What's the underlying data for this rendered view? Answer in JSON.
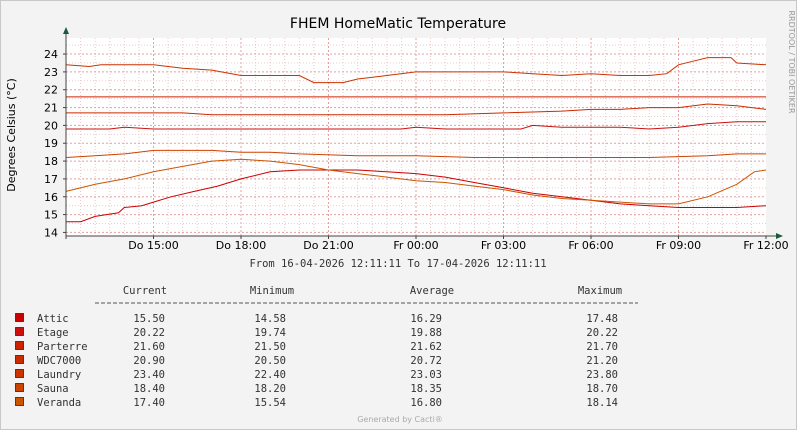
{
  "chart_data": {
    "type": "line",
    "title": "FHEM HomeMatic Temperature",
    "ylabel": "Degrees Celsius (°C)",
    "vertical_credit": "RRDTOOL / TOBI OETIKER",
    "generated_by": "Generated by Cacti®",
    "range_text": "From 16-04-2026 12:11:11 To 17-04-2026 12:11:11",
    "ylim": [
      13.8,
      24.9
    ],
    "xlim": [
      0,
      24
    ],
    "grid": true,
    "y_ticks": [
      14,
      15,
      16,
      17,
      18,
      19,
      20,
      21,
      22,
      23,
      24
    ],
    "x_ticks": [
      {
        "x": 3,
        "label": "Do 15:00"
      },
      {
        "x": 6,
        "label": "Do 18:00"
      },
      {
        "x": 9,
        "label": "Do 21:00"
      },
      {
        "x": 12,
        "label": "Fr 00:00"
      },
      {
        "x": 15,
        "label": "Fr 03:00"
      },
      {
        "x": 18,
        "label": "Fr 06:00"
      },
      {
        "x": 21,
        "label": "Fr 09:00"
      },
      {
        "x": 24,
        "label": "Fr 12:00"
      }
    ],
    "legend_headers": {
      "current": "Current",
      "minimum": "Minimum",
      "average": "Average",
      "maximum": "Maximum"
    },
    "legend_placement": "bottom",
    "series": [
      {
        "name": "Attic",
        "color": "#cc0000",
        "current": "15.50",
        "minimum": "14.58",
        "average": "16.29",
        "maximum": "17.48",
        "points": [
          [
            0,
            14.6
          ],
          [
            0.5,
            14.6
          ],
          [
            1,
            14.9
          ],
          [
            1.8,
            15.1
          ],
          [
            2,
            15.4
          ],
          [
            2.6,
            15.5
          ],
          [
            3,
            15.7
          ],
          [
            3.6,
            16.0
          ],
          [
            4.4,
            16.3
          ],
          [
            5.2,
            16.6
          ],
          [
            6,
            17.0
          ],
          [
            7,
            17.4
          ],
          [
            8,
            17.5
          ],
          [
            9,
            17.5
          ],
          [
            10,
            17.5
          ],
          [
            11,
            17.4
          ],
          [
            12,
            17.3
          ],
          [
            13,
            17.1
          ],
          [
            14,
            16.8
          ],
          [
            15,
            16.5
          ],
          [
            16,
            16.2
          ],
          [
            17,
            16.0
          ],
          [
            18,
            15.8
          ],
          [
            19,
            15.6
          ],
          [
            20,
            15.5
          ],
          [
            21,
            15.4
          ],
          [
            22,
            15.4
          ],
          [
            23,
            15.4
          ],
          [
            24,
            15.5
          ]
        ]
      },
      {
        "name": "Etage",
        "color": "#cc1010",
        "current": "20.22",
        "minimum": "19.74",
        "average": "19.88",
        "maximum": "20.22",
        "points": [
          [
            0,
            19.8
          ],
          [
            1.5,
            19.8
          ],
          [
            2,
            19.9
          ],
          [
            3,
            19.8
          ],
          [
            4,
            19.8
          ],
          [
            6,
            19.8
          ],
          [
            8,
            19.8
          ],
          [
            10,
            19.8
          ],
          [
            11.5,
            19.8
          ],
          [
            12,
            19.9
          ],
          [
            13,
            19.8
          ],
          [
            14,
            19.8
          ],
          [
            15.6,
            19.8
          ],
          [
            16,
            20.0
          ],
          [
            17,
            19.9
          ],
          [
            18,
            19.9
          ],
          [
            19,
            19.9
          ],
          [
            20,
            19.8
          ],
          [
            21,
            19.9
          ],
          [
            22,
            20.1
          ],
          [
            23,
            20.2
          ],
          [
            24,
            20.2
          ]
        ]
      },
      {
        "name": "Parterre",
        "color": "#cc2200",
        "current": "21.60",
        "minimum": "21.50",
        "average": "21.62",
        "maximum": "21.70",
        "points": [
          [
            0,
            21.6
          ],
          [
            3,
            21.6
          ],
          [
            6,
            21.6
          ],
          [
            9,
            21.6
          ],
          [
            12,
            21.6
          ],
          [
            15,
            21.6
          ],
          [
            18,
            21.6
          ],
          [
            21,
            21.6
          ],
          [
            24,
            21.6
          ]
        ]
      },
      {
        "name": "WDC7000",
        "color": "#cc2a00",
        "current": "20.90",
        "minimum": "20.50",
        "average": "20.72",
        "maximum": "21.20",
        "points": [
          [
            0,
            20.7
          ],
          [
            2,
            20.7
          ],
          [
            4,
            20.7
          ],
          [
            5,
            20.6
          ],
          [
            7,
            20.6
          ],
          [
            9,
            20.6
          ],
          [
            11,
            20.6
          ],
          [
            13,
            20.6
          ],
          [
            15,
            20.7
          ],
          [
            17,
            20.8
          ],
          [
            18,
            20.9
          ],
          [
            19,
            20.9
          ],
          [
            20,
            21.0
          ],
          [
            21,
            21.0
          ],
          [
            22,
            21.2
          ],
          [
            23,
            21.1
          ],
          [
            24,
            20.9
          ]
        ]
      },
      {
        "name": "Laundry",
        "color": "#cc3300",
        "current": "23.40",
        "minimum": "22.40",
        "average": "23.03",
        "maximum": "23.80",
        "points": [
          [
            0,
            23.4
          ],
          [
            0.8,
            23.3
          ],
          [
            1.2,
            23.4
          ],
          [
            3,
            23.4
          ],
          [
            4,
            23.2
          ],
          [
            5,
            23.1
          ],
          [
            6,
            22.8
          ],
          [
            7,
            22.8
          ],
          [
            8,
            22.8
          ],
          [
            8.5,
            22.4
          ],
          [
            9.5,
            22.4
          ],
          [
            10,
            22.6
          ],
          [
            11,
            22.8
          ],
          [
            12,
            23.0
          ],
          [
            13,
            23.0
          ],
          [
            14,
            23.0
          ],
          [
            15,
            23.0
          ],
          [
            16,
            22.9
          ],
          [
            17,
            22.8
          ],
          [
            18,
            22.9
          ],
          [
            19,
            22.8
          ],
          [
            20,
            22.8
          ],
          [
            20.6,
            22.9
          ],
          [
            21,
            23.4
          ],
          [
            21.5,
            23.6
          ],
          [
            22,
            23.8
          ],
          [
            22.8,
            23.8
          ],
          [
            23,
            23.5
          ],
          [
            24,
            23.4
          ]
        ]
      },
      {
        "name": "Sauna",
        "color": "#cc4400",
        "current": "18.40",
        "minimum": "18.20",
        "average": "18.35",
        "maximum": "18.70",
        "points": [
          [
            0,
            18.2
          ],
          [
            1,
            18.3
          ],
          [
            2,
            18.4
          ],
          [
            3,
            18.6
          ],
          [
            5,
            18.6
          ],
          [
            6,
            18.5
          ],
          [
            7,
            18.5
          ],
          [
            8,
            18.4
          ],
          [
            10,
            18.3
          ],
          [
            12,
            18.3
          ],
          [
            14,
            18.2
          ],
          [
            16,
            18.2
          ],
          [
            18,
            18.2
          ],
          [
            20,
            18.2
          ],
          [
            22,
            18.3
          ],
          [
            23,
            18.4
          ],
          [
            24,
            18.4
          ]
        ]
      },
      {
        "name": "Veranda",
        "color": "#cc5500",
        "current": "17.40",
        "minimum": "15.54",
        "average": "16.80",
        "maximum": "18.14",
        "points": [
          [
            0,
            16.3
          ],
          [
            1,
            16.7
          ],
          [
            2,
            17.0
          ],
          [
            3,
            17.4
          ],
          [
            4,
            17.7
          ],
          [
            5,
            18.0
          ],
          [
            6,
            18.1
          ],
          [
            7,
            18.0
          ],
          [
            8,
            17.8
          ],
          [
            9,
            17.5
          ],
          [
            10,
            17.3
          ],
          [
            11,
            17.1
          ],
          [
            12,
            16.9
          ],
          [
            13,
            16.8
          ],
          [
            14,
            16.6
          ],
          [
            15,
            16.4
          ],
          [
            16,
            16.1
          ],
          [
            17,
            15.9
          ],
          [
            18,
            15.8
          ],
          [
            19,
            15.7
          ],
          [
            20,
            15.6
          ],
          [
            21,
            15.6
          ],
          [
            22,
            16.0
          ],
          [
            23,
            16.7
          ],
          [
            23.6,
            17.4
          ],
          [
            24,
            17.5
          ]
        ]
      }
    ]
  }
}
